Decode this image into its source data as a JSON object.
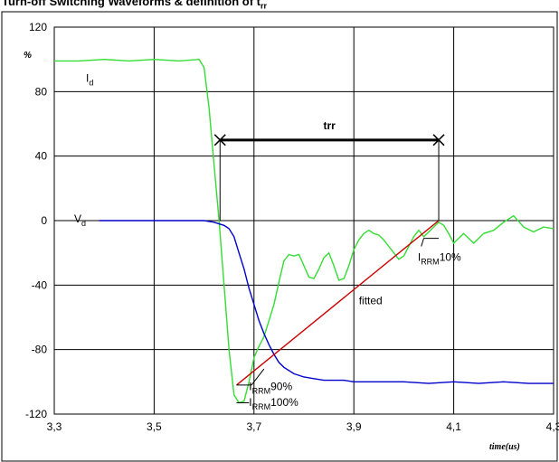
{
  "title_parts": {
    "prefix": "Turn-off Switching Waveforms & definition of t",
    "sub": "rr"
  },
  "chart_data": {
    "type": "line",
    "xlabel": "time(us)",
    "ylabel": "%",
    "xlim": [
      3.3,
      4.3
    ],
    "ylim": [
      -120,
      120
    ],
    "x_ticks": [
      "3,3",
      "3,5",
      "3,7",
      "3,9",
      "4,1",
      "4,3"
    ],
    "y_ticks": [
      "120",
      "80",
      "40",
      "0",
      "-40",
      "-80",
      "-120"
    ],
    "grid": true,
    "series": [
      {
        "name": "Id",
        "color": "#33dd33",
        "x": [
          3.3,
          3.35,
          3.4,
          3.45,
          3.5,
          3.55,
          3.59,
          3.6,
          3.61,
          3.62,
          3.63,
          3.64,
          3.65,
          3.66,
          3.67,
          3.68,
          3.69,
          3.7,
          3.71,
          3.72,
          3.73,
          3.74,
          3.75,
          3.76,
          3.77,
          3.78,
          3.79,
          3.8,
          3.81,
          3.82,
          3.83,
          3.84,
          3.85,
          3.86,
          3.87,
          3.88,
          3.89,
          3.9,
          3.91,
          3.92,
          3.93,
          3.94,
          3.95,
          3.96,
          3.97,
          3.98,
          3.99,
          4.0,
          4.01,
          4.02,
          4.03,
          4.04,
          4.05,
          4.06,
          4.07,
          4.08,
          4.09,
          4.1,
          4.12,
          4.14,
          4.16,
          4.18,
          4.2,
          4.22,
          4.24,
          4.26,
          4.28,
          4.3
        ],
        "y": [
          99,
          99,
          100,
          99,
          100,
          99,
          100,
          95,
          70,
          35,
          0,
          -40,
          -80,
          -108,
          -113,
          -112,
          -100,
          -85,
          -78,
          -72,
          -62,
          -52,
          -38,
          -25,
          -21,
          -22,
          -21,
          -28,
          -35,
          -36,
          -30,
          -23,
          -20,
          -28,
          -37,
          -36,
          -28,
          -18,
          -12,
          -8,
          -6,
          -8,
          -9,
          -12,
          -16,
          -20,
          -24,
          -22,
          -16,
          -10,
          -6,
          -10,
          -7,
          -4,
          -1,
          -3,
          -8,
          -14,
          -8,
          -14,
          -8,
          -6,
          -1,
          3,
          -4,
          -7,
          -4,
          -5
        ]
      },
      {
        "name": "Vd",
        "color": "#0000cc",
        "x": [
          3.39,
          3.45,
          3.5,
          3.55,
          3.6,
          3.62,
          3.63,
          3.64,
          3.65,
          3.66,
          3.67,
          3.68,
          3.69,
          3.7,
          3.71,
          3.72,
          3.73,
          3.74,
          3.75,
          3.76,
          3.78,
          3.8,
          3.82,
          3.84,
          3.86,
          3.88,
          3.9,
          3.95,
          4.0,
          4.05,
          4.1,
          4.15,
          4.2,
          4.25,
          4.3
        ],
        "y": [
          0,
          0,
          0,
          0,
          0,
          -1,
          -2,
          -3,
          -5,
          -10,
          -20,
          -30,
          -42,
          -52,
          -62,
          -70,
          -77,
          -83,
          -88,
          -91,
          -95,
          -97,
          -98,
          -99,
          -99,
          -99,
          -100,
          -100,
          -100,
          -101,
          -100,
          -101,
          -100,
          -101,
          -101
        ]
      },
      {
        "name": "fitted",
        "color": "#cc0000",
        "x": [
          3.665,
          4.07
        ],
        "y": [
          -102,
          0
        ]
      }
    ],
    "annotations": {
      "Id_label": {
        "main": "I",
        "sub": "d"
      },
      "Vd_label": {
        "main": "V",
        "sub": "d"
      },
      "trr": "trr",
      "fitted": "fitted",
      "irrm90": {
        "main": "I",
        "sub": "RRM",
        "tail": "90%"
      },
      "irrm100": {
        "main": "I",
        "sub": "RRM",
        "tail": "100%"
      },
      "irrm10": {
        "main": "I",
        "sub": "RRM",
        "tail": "10%"
      },
      "trr_span": [
        3.632,
        4.07
      ],
      "trr_level": 50
    }
  }
}
